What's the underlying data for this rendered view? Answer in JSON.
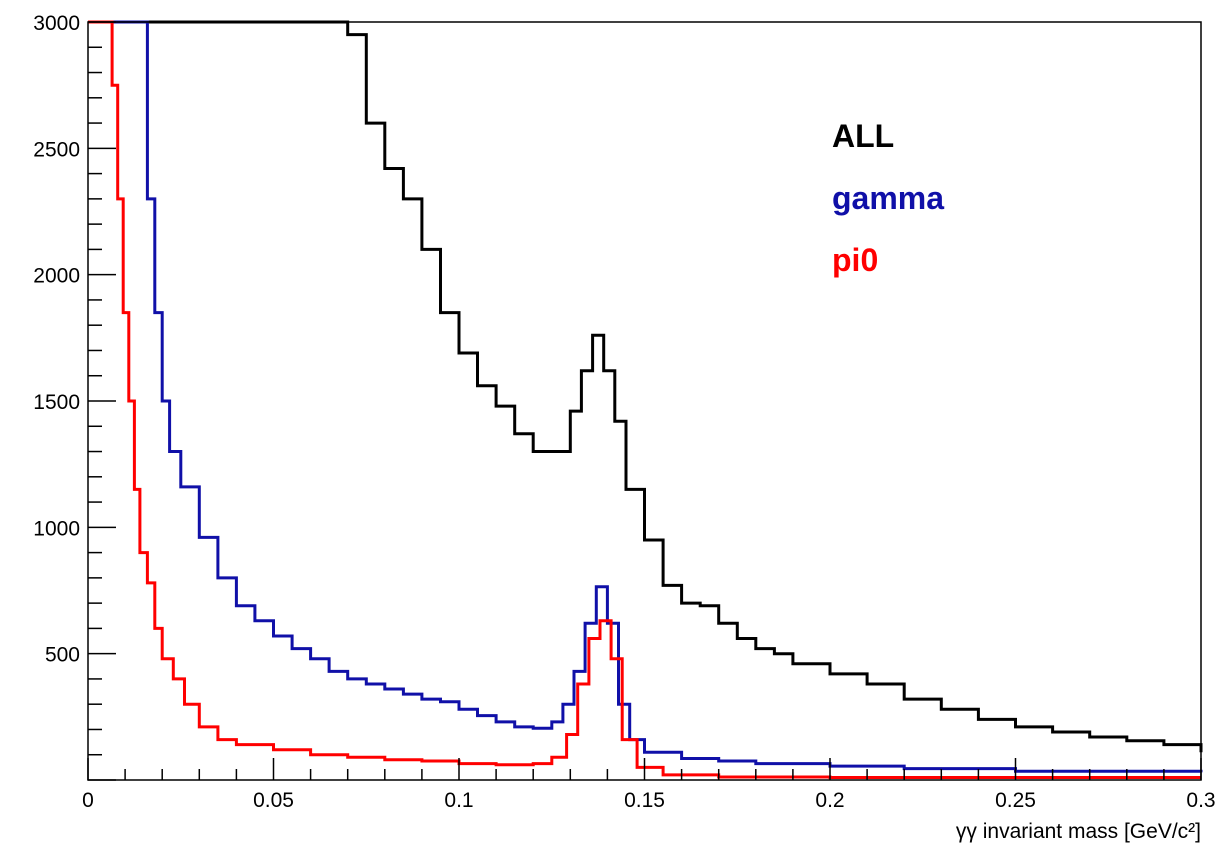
{
  "chart_data": {
    "type": "line",
    "style": "step histogram",
    "title": "",
    "xlabel": "γγ invariant mass [GeV/c²]",
    "ylabel": "",
    "xlim": [
      0,
      0.3
    ],
    "ylim": [
      0,
      3000
    ],
    "grid": false,
    "legend_position": "top-right",
    "x_ticks": [
      {
        "value": 0,
        "label": "0"
      },
      {
        "value": 0.05,
        "label": "0.05"
      },
      {
        "value": 0.1,
        "label": "0.1"
      },
      {
        "value": 0.15,
        "label": "0.15"
      },
      {
        "value": 0.2,
        "label": "0.2"
      },
      {
        "value": 0.25,
        "label": "0.25"
      },
      {
        "value": 0.3,
        "label": "0.3"
      }
    ],
    "y_ticks": [
      {
        "value": 500,
        "label": "500"
      },
      {
        "value": 1000,
        "label": "1000"
      },
      {
        "value": 1500,
        "label": "1500"
      },
      {
        "value": 2000,
        "label": "2000"
      },
      {
        "value": 2500,
        "label": "2500"
      },
      {
        "value": 3000,
        "label": "3000"
      }
    ],
    "series": [
      {
        "name": "ALL",
        "color": "#000000",
        "points": [
          [
            0.0,
            3000
          ],
          [
            0.065,
            3000
          ],
          [
            0.07,
            2950
          ],
          [
            0.075,
            2600
          ],
          [
            0.08,
            2420
          ],
          [
            0.085,
            2300
          ],
          [
            0.09,
            2100
          ],
          [
            0.095,
            1850
          ],
          [
            0.1,
            1690
          ],
          [
            0.105,
            1560
          ],
          [
            0.11,
            1480
          ],
          [
            0.115,
            1370
          ],
          [
            0.12,
            1300
          ],
          [
            0.125,
            1300
          ],
          [
            0.13,
            1460
          ],
          [
            0.133,
            1620
          ],
          [
            0.136,
            1760
          ],
          [
            0.139,
            1620
          ],
          [
            0.142,
            1420
          ],
          [
            0.145,
            1150
          ],
          [
            0.15,
            950
          ],
          [
            0.155,
            770
          ],
          [
            0.16,
            700
          ],
          [
            0.165,
            690
          ],
          [
            0.17,
            620
          ],
          [
            0.175,
            560
          ],
          [
            0.18,
            520
          ],
          [
            0.185,
            500
          ],
          [
            0.19,
            460
          ],
          [
            0.2,
            420
          ],
          [
            0.21,
            380
          ],
          [
            0.22,
            320
          ],
          [
            0.23,
            280
          ],
          [
            0.24,
            240
          ],
          [
            0.25,
            210
          ],
          [
            0.26,
            190
          ],
          [
            0.27,
            170
          ],
          [
            0.28,
            155
          ],
          [
            0.29,
            140
          ],
          [
            0.3,
            110
          ]
        ]
      },
      {
        "name": "gamma",
        "color": "#1010a8",
        "points": [
          [
            0.0,
            3000
          ],
          [
            0.0145,
            3000
          ],
          [
            0.016,
            2300
          ],
          [
            0.018,
            1850
          ],
          [
            0.02,
            1500
          ],
          [
            0.022,
            1300
          ],
          [
            0.025,
            1160
          ],
          [
            0.03,
            960
          ],
          [
            0.035,
            800
          ],
          [
            0.04,
            690
          ],
          [
            0.045,
            630
          ],
          [
            0.05,
            570
          ],
          [
            0.055,
            520
          ],
          [
            0.06,
            480
          ],
          [
            0.065,
            430
          ],
          [
            0.07,
            400
          ],
          [
            0.075,
            380
          ],
          [
            0.08,
            360
          ],
          [
            0.085,
            340
          ],
          [
            0.09,
            320
          ],
          [
            0.095,
            310
          ],
          [
            0.1,
            280
          ],
          [
            0.105,
            255
          ],
          [
            0.11,
            230
          ],
          [
            0.115,
            210
          ],
          [
            0.12,
            205
          ],
          [
            0.125,
            230
          ],
          [
            0.128,
            300
          ],
          [
            0.131,
            430
          ],
          [
            0.134,
            620
          ],
          [
            0.137,
            765
          ],
          [
            0.14,
            620
          ],
          [
            0.143,
            300
          ],
          [
            0.146,
            160
          ],
          [
            0.15,
            110
          ],
          [
            0.16,
            85
          ],
          [
            0.17,
            75
          ],
          [
            0.18,
            65
          ],
          [
            0.2,
            55
          ],
          [
            0.22,
            45
          ],
          [
            0.25,
            35
          ],
          [
            0.3,
            30
          ]
        ]
      },
      {
        "name": "pi0",
        "color": "#ff0000",
        "points": [
          [
            0.0,
            3000
          ],
          [
            0.005,
            3000
          ],
          [
            0.0065,
            2750
          ],
          [
            0.008,
            2300
          ],
          [
            0.0095,
            1850
          ],
          [
            0.011,
            1500
          ],
          [
            0.0125,
            1150
          ],
          [
            0.014,
            900
          ],
          [
            0.016,
            780
          ],
          [
            0.018,
            600
          ],
          [
            0.02,
            480
          ],
          [
            0.023,
            400
          ],
          [
            0.026,
            300
          ],
          [
            0.03,
            210
          ],
          [
            0.035,
            160
          ],
          [
            0.04,
            140
          ],
          [
            0.05,
            120
          ],
          [
            0.06,
            100
          ],
          [
            0.07,
            90
          ],
          [
            0.08,
            80
          ],
          [
            0.09,
            75
          ],
          [
            0.1,
            65
          ],
          [
            0.11,
            60
          ],
          [
            0.12,
            65
          ],
          [
            0.125,
            90
          ],
          [
            0.129,
            180
          ],
          [
            0.132,
            380
          ],
          [
            0.135,
            560
          ],
          [
            0.138,
            630
          ],
          [
            0.141,
            480
          ],
          [
            0.144,
            160
          ],
          [
            0.148,
            50
          ],
          [
            0.155,
            20
          ],
          [
            0.17,
            12
          ],
          [
            0.2,
            10
          ],
          [
            0.25,
            10
          ],
          [
            0.3,
            10
          ]
        ]
      }
    ],
    "legend": [
      {
        "label": "ALL",
        "color": "#000000"
      },
      {
        "label": "gamma",
        "color": "#1010a8"
      },
      {
        "label": "pi0",
        "color": "#ff0000"
      }
    ]
  }
}
